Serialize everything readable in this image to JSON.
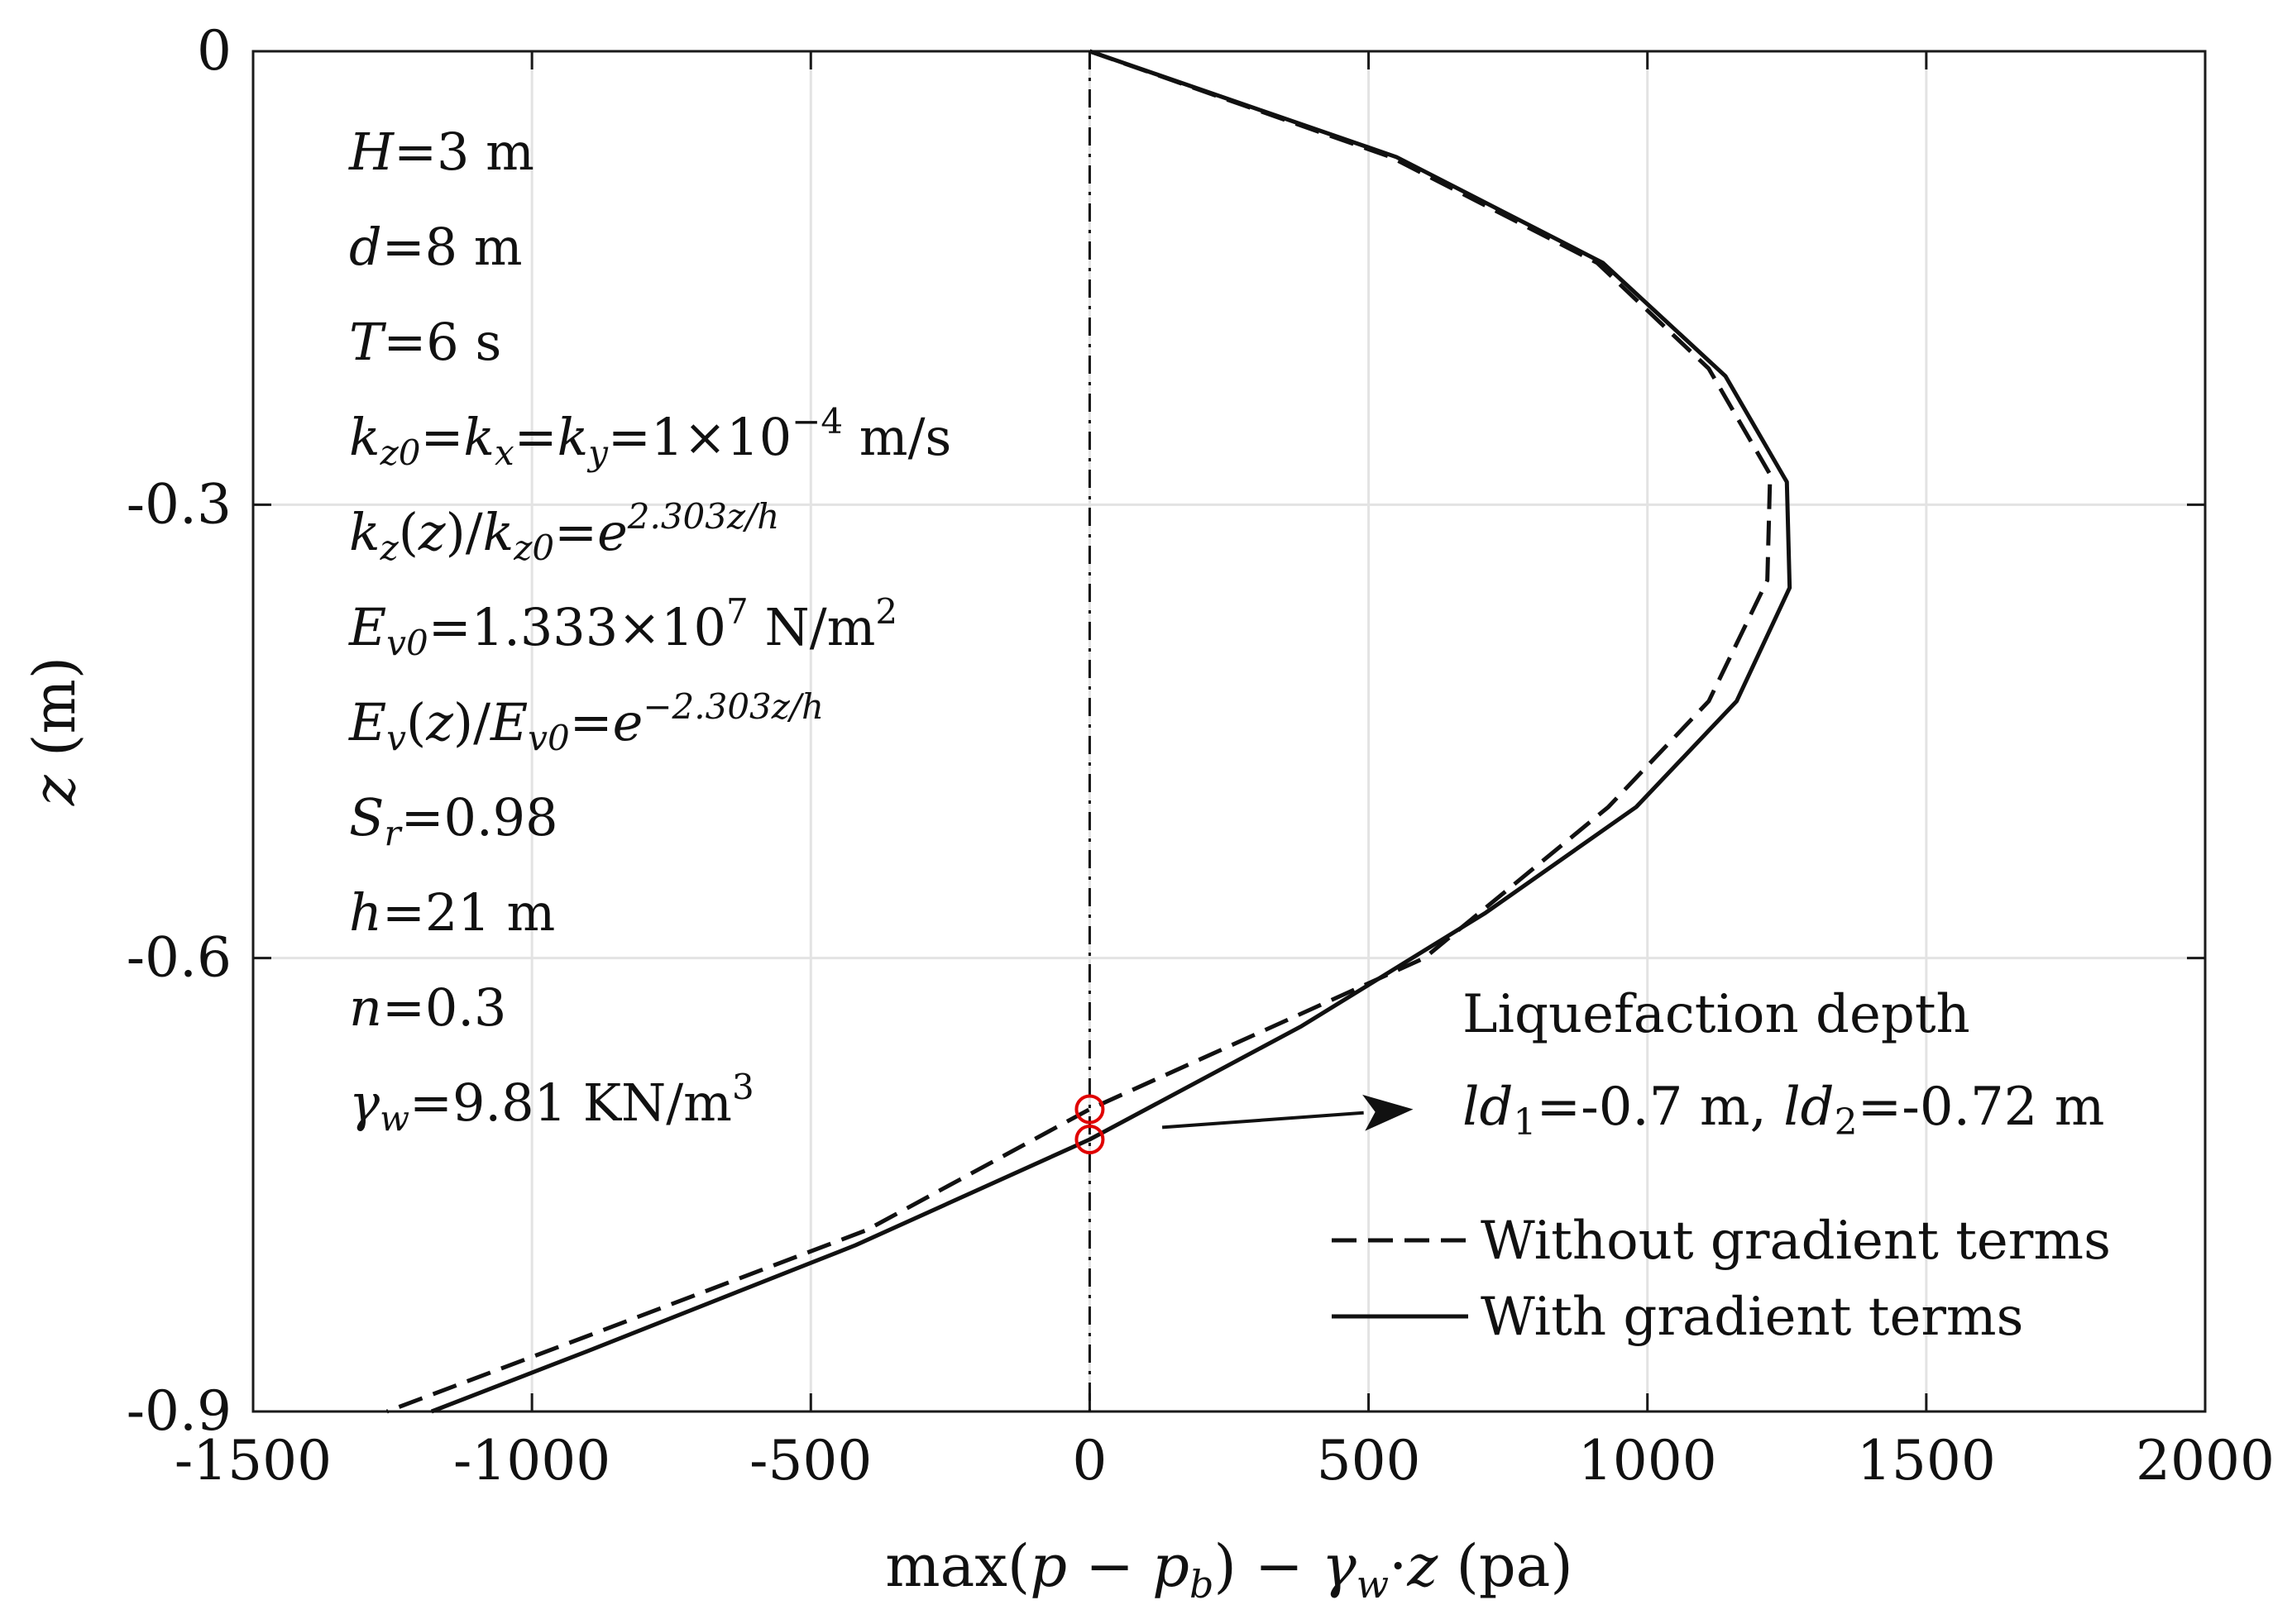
{
  "chart_data": {
    "type": "line",
    "xlabel": "max(p − p_b) − γ_w·z (pa)",
    "xlabel_parts": {
      "pre": "max(",
      "p1": "p",
      "minus1": " − ",
      "p2": "p",
      "sub_b": "b",
      "close": ") − ",
      "gamma": "γ",
      "sub_w": "w",
      "dot": "·",
      "z": "z",
      "unit": " (pa)"
    },
    "ylabel": "z (m)",
    "ylabel_parts": {
      "var": "z",
      "unit": " (m)"
    },
    "xlim": [
      -1500,
      2000
    ],
    "ylim": [
      -0.9,
      0
    ],
    "grid": true,
    "x_ticks": [
      -1500,
      -1000,
      -500,
      0,
      500,
      1000,
      1500,
      2000
    ],
    "x_tick_labels": [
      "-1500",
      "-1000",
      "-500",
      "0",
      "500",
      "1000",
      "1500",
      "2000"
    ],
    "y_ticks": [
      0,
      -0.3,
      -0.6,
      -0.9
    ],
    "y_tick_labels": [
      "0",
      "-0.3",
      "-0.6",
      "-0.9"
    ],
    "reference_line": {
      "x": 0,
      "style": "dash-dot"
    },
    "series": [
      {
        "name": "Without gradient terms",
        "style": "dashed",
        "x": [
          0,
          540,
          910,
          1110,
          1220,
          1215,
          1110,
          930,
          600,
          0,
          -400,
          -900,
          -1260
        ],
        "y": [
          0,
          -0.07,
          -0.14,
          -0.21,
          -0.28,
          -0.35,
          -0.43,
          -0.5,
          -0.6,
          -0.7,
          -0.78,
          -0.85,
          -0.9
        ]
      },
      {
        "name": "With gradient terms",
        "style": "solid",
        "x": [
          0,
          550,
          920,
          1140,
          1250,
          1255,
          1160,
          980,
          710,
          380,
          0,
          -420,
          -900,
          -1180
        ],
        "y": [
          0,
          -0.07,
          -0.14,
          -0.215,
          -0.285,
          -0.355,
          -0.43,
          -0.5,
          -0.57,
          -0.645,
          -0.72,
          -0.79,
          -0.86,
          -0.9
        ]
      }
    ],
    "markers": [
      {
        "x": 0,
        "y": -0.7,
        "color": "#e00000"
      },
      {
        "x": 0,
        "y": -0.72,
        "color": "#e00000"
      }
    ],
    "annotation": {
      "title": "Liquefaction depth",
      "ld1_var": "ld",
      "ld1_sub": "1",
      "ld1_val": "=-0.7 m, ",
      "ld2_var": "ld",
      "ld2_sub": "2",
      "ld2_val": "=-0.72 m",
      "arrow_from": {
        "x": 130,
        "y": -0.712
      },
      "arrow_to": {
        "x": 580,
        "y": -0.7
      }
    },
    "parameters": {
      "H": {
        "var": "H",
        "val": "=3 m"
      },
      "d": {
        "var": "d",
        "val": "=8 m"
      },
      "T": {
        "var": "T",
        "val": "=6 s"
      },
      "k": {
        "k1": "k",
        "s1": "z0",
        "k2": "k",
        "s2": "x",
        "k3": "k",
        "s3": "y",
        "val": "=1×10",
        "exp": "−4",
        "unit": " m/s"
      },
      "kz": {
        "k": "k",
        "s": "z",
        "mid": "(",
        "z": "z",
        "mid2": ")/",
        "k2": "k",
        "s2": "z0",
        "eq": "=",
        "e": "e",
        "exp": "2.303z/h"
      },
      "Ev0": {
        "E": "E",
        "s": "v0",
        "val": "=1.333×10",
        "exp": "7",
        "unit": " N/m",
        "unit_exp": "2"
      },
      "Ev": {
        "E": "E",
        "s": "v",
        "mid": "(",
        "z": "z",
        "mid2": ")/",
        "E2": "E",
        "s2": "v0",
        "eq": "=",
        "e": "e",
        "exp": "−2.303z/h"
      },
      "Sr": {
        "S": "S",
        "s": "r",
        "val": "=0.98"
      },
      "h": {
        "var": "h",
        "val": "=21 m"
      },
      "n": {
        "var": "n",
        "val": "=0.3"
      },
      "gw": {
        "g": "γ",
        "s": "w",
        "val": "=9.81 KN/m",
        "exp": "3"
      }
    }
  }
}
